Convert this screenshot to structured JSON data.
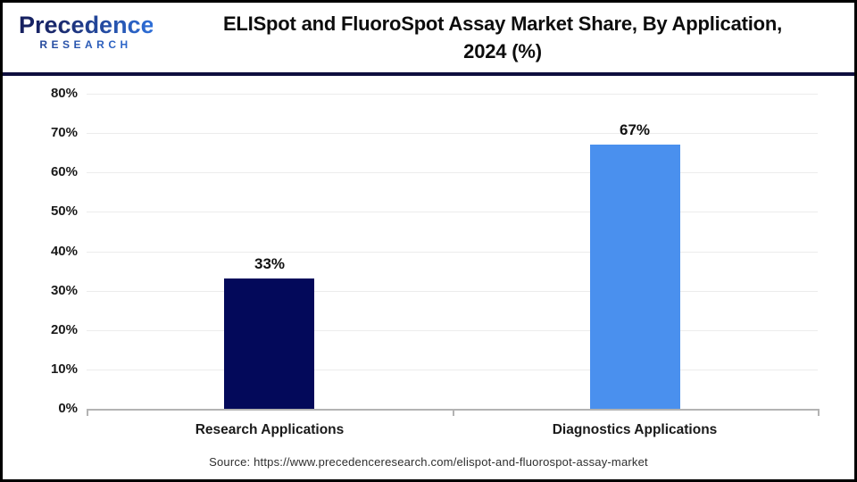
{
  "header": {
    "logo": {
      "line1": "Precedence",
      "line2": "RESEARCH"
    },
    "title_line1": "ELISpot and FluoroSpot Assay Market Share, By Application,",
    "title_line2": "2024 (%)"
  },
  "chart_data": {
    "type": "bar",
    "title": "ELISpot and FluoroSpot Assay Market Share, By Application, 2024 (%)",
    "categories": [
      "Research Applications",
      "Diagnostics Applications"
    ],
    "values": [
      33,
      67
    ],
    "value_labels": [
      "33%",
      "67%"
    ],
    "bar_colors": [
      "#03095A",
      "#4A90EE"
    ],
    "xlabel": "",
    "ylabel": "",
    "ylim": [
      0,
      80
    ],
    "ytick_step": 10,
    "yticks": [
      "0%",
      "10%",
      "20%",
      "30%",
      "40%",
      "50%",
      "60%",
      "70%",
      "80%"
    ],
    "grid": "horizontal",
    "legend": "none"
  },
  "footer": {
    "source": "Source: https://www.precedenceresearch.com/elispot-and-fluorospot-assay-market"
  },
  "colors": {
    "bar_research": "#03095A",
    "bar_diagnostics": "#4A90EE",
    "header_divider": "#0F0F3E",
    "outer_border": "#000000",
    "axis_line": "#B3B3B3",
    "gridline": "#ECECEC",
    "logo_navy": "#1B2A6E",
    "logo_blue": "#2E6FD8"
  }
}
